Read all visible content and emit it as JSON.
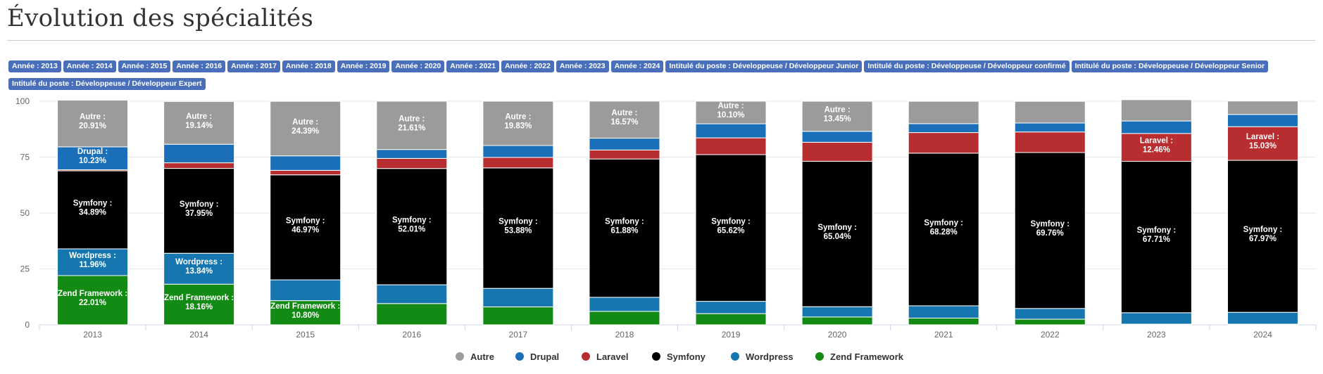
{
  "page": {
    "title": "Évolution des spécialités",
    "filters": [
      "Année : 2013",
      "Année : 2014",
      "Année : 2015",
      "Année : 2016",
      "Année : 2017",
      "Année : 2018",
      "Année : 2019",
      "Année : 2020",
      "Année : 2021",
      "Année : 2022",
      "Année : 2023",
      "Année : 2024",
      "Intitulé du poste : Développeuse / Développeur Junior",
      "Intitulé du poste : Développeuse / Développeur confirmé",
      "Intitulé du poste : Développeuse / Développeur Senior",
      "Intitulé du poste : Développeuse / Développeur Expert"
    ]
  },
  "chart_data": {
    "type": "bar",
    "stacked": true,
    "categories": [
      "2013",
      "2014",
      "2015",
      "2016",
      "2017",
      "2018",
      "2019",
      "2020",
      "2021",
      "2022",
      "2023",
      "2024"
    ],
    "ylim": [
      0,
      100
    ],
    "yticks": [
      0,
      25,
      50,
      75,
      100
    ],
    "grid": true,
    "legend_position": "bottom",
    "series": [
      {
        "name": "Zend Framework",
        "color": "#138a14",
        "values": [
          22.01,
          18.16,
          10.8,
          9.5,
          8.0,
          6.0,
          5.0,
          3.5,
          3.0,
          2.5,
          0.3,
          0.3
        ]
      },
      {
        "name": "Wordpress",
        "color": "#1676b0",
        "values": [
          11.96,
          13.84,
          9.3,
          8.4,
          8.3,
          6.3,
          5.5,
          4.6,
          5.5,
          4.8,
          5.1,
          5.3
        ]
      },
      {
        "name": "Symfony",
        "color": "#000000",
        "values": [
          34.89,
          37.95,
          46.97,
          52.01,
          53.88,
          61.88,
          65.62,
          65.04,
          68.28,
          69.76,
          67.71,
          67.97
        ]
      },
      {
        "name": "Laravel",
        "color": "#b82d2f",
        "values": [
          0.5,
          2.5,
          2.0,
          4.5,
          4.7,
          4.0,
          7.5,
          8.5,
          9.2,
          9.2,
          12.46,
          15.03
        ]
      },
      {
        "name": "Drupal",
        "color": "#1a6fb8",
        "values": [
          10.23,
          8.3,
          6.5,
          4.0,
          5.3,
          5.3,
          6.3,
          4.9,
          4.0,
          4.0,
          5.6,
          5.5
        ]
      },
      {
        "name": "Autre",
        "color": "#9b9b9b",
        "values": [
          20.91,
          19.14,
          24.39,
          21.61,
          19.83,
          16.57,
          10.1,
          13.45,
          10.0,
          9.7,
          9.5,
          6.0
        ]
      }
    ],
    "data_labels": [
      {
        "category": "2013",
        "series": "Autre",
        "text": [
          "Autre :",
          "20.91%"
        ]
      },
      {
        "category": "2013",
        "series": "Drupal",
        "text": [
          "Drupal :",
          "10.23%"
        ]
      },
      {
        "category": "2013",
        "series": "Symfony",
        "text": [
          "Symfony :",
          "34.89%"
        ]
      },
      {
        "category": "2013",
        "series": "Wordpress",
        "text": [
          "Wordpress :",
          "11.96%"
        ]
      },
      {
        "category": "2013",
        "series": "Zend Framework",
        "text": [
          "Zend Framework :",
          "22.01%"
        ]
      },
      {
        "category": "2014",
        "series": "Autre",
        "text": [
          "Autre :",
          "19.14%"
        ]
      },
      {
        "category": "2014",
        "series": "Symfony",
        "text": [
          "Symfony :",
          "37.95%"
        ]
      },
      {
        "category": "2014",
        "series": "Wordpress",
        "text": [
          "Wordpress :",
          "13.84%"
        ]
      },
      {
        "category": "2014",
        "series": "Zend Framework",
        "text": [
          "Zend Framework :",
          "18.16%"
        ]
      },
      {
        "category": "2015",
        "series": "Autre",
        "text": [
          "Autre :",
          "24.39%"
        ]
      },
      {
        "category": "2015",
        "series": "Symfony",
        "text": [
          "Symfony :",
          "46.97%"
        ]
      },
      {
        "category": "2015",
        "series": "Zend Framework",
        "text": [
          "Zend Framework :",
          "10.80%"
        ]
      },
      {
        "category": "2016",
        "series": "Autre",
        "text": [
          "Autre :",
          "21.61%"
        ]
      },
      {
        "category": "2016",
        "series": "Symfony",
        "text": [
          "Symfony :",
          "52.01%"
        ]
      },
      {
        "category": "2017",
        "series": "Autre",
        "text": [
          "Autre :",
          "19.83%"
        ]
      },
      {
        "category": "2017",
        "series": "Symfony",
        "text": [
          "Symfony :",
          "53.88%"
        ]
      },
      {
        "category": "2018",
        "series": "Autre",
        "text": [
          "Autre :",
          "16.57%"
        ]
      },
      {
        "category": "2018",
        "series": "Symfony",
        "text": [
          "Symfony :",
          "61.88%"
        ]
      },
      {
        "category": "2019",
        "series": "Autre",
        "text": [
          "Autre :",
          "10.10%"
        ]
      },
      {
        "category": "2019",
        "series": "Symfony",
        "text": [
          "Symfony :",
          "65.62%"
        ]
      },
      {
        "category": "2020",
        "series": "Autre",
        "text": [
          "Autre :",
          "13.45%"
        ]
      },
      {
        "category": "2020",
        "series": "Symfony",
        "text": [
          "Symfony :",
          "65.04%"
        ]
      },
      {
        "category": "2021",
        "series": "Symfony",
        "text": [
          "Symfony :",
          "68.28%"
        ]
      },
      {
        "category": "2022",
        "series": "Symfony",
        "text": [
          "Symfony :",
          "69.76%"
        ]
      },
      {
        "category": "2023",
        "series": "Laravel",
        "text": [
          "Laravel :",
          "12.46%"
        ]
      },
      {
        "category": "2023",
        "series": "Symfony",
        "text": [
          "Symfony :",
          "67.71%"
        ]
      },
      {
        "category": "2024",
        "series": "Laravel",
        "text": [
          "Laravel :",
          "15.03%"
        ]
      },
      {
        "category": "2024",
        "series": "Symfony",
        "text": [
          "Symfony :",
          "67.97%"
        ]
      }
    ],
    "legend": [
      {
        "name": "Autre",
        "color": "#9b9b9b"
      },
      {
        "name": "Drupal",
        "color": "#1a6fb8"
      },
      {
        "name": "Laravel",
        "color": "#b82d2f"
      },
      {
        "name": "Symfony",
        "color": "#000000"
      },
      {
        "name": "Wordpress",
        "color": "#1676b0"
      },
      {
        "name": "Zend Framework",
        "color": "#138a14"
      }
    ]
  }
}
